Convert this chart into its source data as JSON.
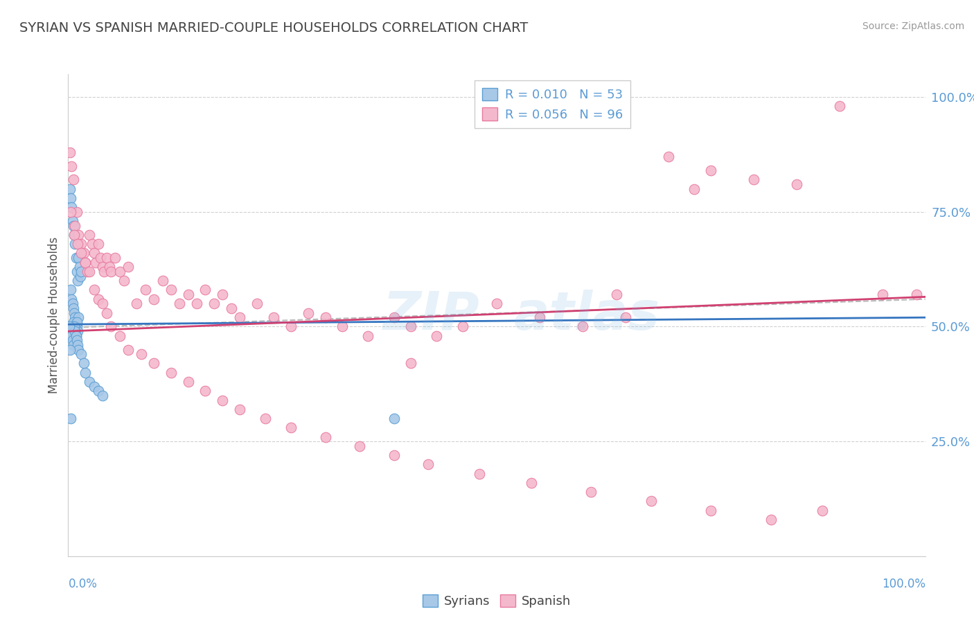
{
  "title": "SYRIAN VS SPANISH MARRIED-COUPLE HOUSEHOLDS CORRELATION CHART",
  "source": "Source: ZipAtlas.com",
  "ylabel": "Married-couple Households",
  "ytick_labels": [
    "25.0%",
    "50.0%",
    "75.0%",
    "100.0%"
  ],
  "ytick_values": [
    0.25,
    0.5,
    0.75,
    1.0
  ],
  "xlim": [
    0.0,
    1.0
  ],
  "ylim": [
    0.0,
    1.05
  ],
  "syrian_R": 0.01,
  "syrian_N": 53,
  "spanish_R": 0.056,
  "spanish_N": 96,
  "syrian_color": "#a8c8e8",
  "spanish_color": "#f4b8cc",
  "syrian_edge": "#5a9fd4",
  "spanish_edge": "#e87aa0",
  "trend_syrian_color": "#3575c0",
  "trend_spanish_color": "#d04070",
  "trend_dashed_color": "#b8b8b8",
  "background_color": "#ffffff",
  "grid_color": "#d0d0d0",
  "title_color": "#444444",
  "axis_label_color": "#5b9bd5",
  "legend_R_color": "#5b9bd5",
  "watermark_line1": "ZIP",
  "watermark_line2": "atlas",
  "syrian_x": [
    0.002,
    0.003,
    0.004,
    0.005,
    0.006,
    0.007,
    0.008,
    0.009,
    0.01,
    0.011,
    0.012,
    0.013,
    0.014,
    0.015,
    0.003,
    0.004,
    0.005,
    0.006,
    0.007,
    0.008,
    0.009,
    0.01,
    0.011,
    0.012,
    0.006,
    0.007,
    0.008,
    0.009,
    0.01,
    0.005,
    0.006,
    0.007,
    0.008,
    0.004,
    0.005,
    0.006,
    0.007,
    0.008,
    0.009,
    0.01,
    0.011,
    0.012,
    0.015,
    0.018,
    0.02,
    0.025,
    0.03,
    0.035,
    0.04,
    0.001,
    0.002,
    0.003,
    0.38
  ],
  "syrian_y": [
    0.8,
    0.78,
    0.76,
    0.73,
    0.72,
    0.7,
    0.68,
    0.65,
    0.62,
    0.6,
    0.65,
    0.63,
    0.61,
    0.62,
    0.58,
    0.56,
    0.55,
    0.54,
    0.53,
    0.52,
    0.51,
    0.5,
    0.49,
    0.52,
    0.51,
    0.5,
    0.49,
    0.48,
    0.51,
    0.5,
    0.49,
    0.48,
    0.47,
    0.48,
    0.47,
    0.46,
    0.5,
    0.49,
    0.48,
    0.47,
    0.46,
    0.45,
    0.44,
    0.42,
    0.4,
    0.38,
    0.37,
    0.36,
    0.35,
    0.5,
    0.45,
    0.3,
    0.3
  ],
  "spanish_x": [
    0.002,
    0.004,
    0.006,
    0.008,
    0.01,
    0.012,
    0.015,
    0.018,
    0.02,
    0.022,
    0.025,
    0.028,
    0.03,
    0.032,
    0.035,
    0.038,
    0.04,
    0.042,
    0.045,
    0.048,
    0.05,
    0.055,
    0.06,
    0.065,
    0.07,
    0.08,
    0.09,
    0.1,
    0.11,
    0.12,
    0.13,
    0.14,
    0.15,
    0.16,
    0.17,
    0.18,
    0.19,
    0.2,
    0.22,
    0.24,
    0.26,
    0.28,
    0.3,
    0.32,
    0.35,
    0.38,
    0.4,
    0.43,
    0.46,
    0.5,
    0.55,
    0.6,
    0.65,
    0.7,
    0.75,
    0.8,
    0.85,
    0.9,
    0.95,
    0.99,
    0.003,
    0.007,
    0.011,
    0.015,
    0.02,
    0.025,
    0.03,
    0.035,
    0.04,
    0.045,
    0.05,
    0.06,
    0.07,
    0.085,
    0.1,
    0.12,
    0.14,
    0.16,
    0.18,
    0.2,
    0.23,
    0.26,
    0.3,
    0.34,
    0.38,
    0.42,
    0.48,
    0.54,
    0.61,
    0.68,
    0.75,
    0.82,
    0.88,
    0.73,
    0.64,
    0.4
  ],
  "spanish_y": [
    0.88,
    0.85,
    0.82,
    0.72,
    0.75,
    0.7,
    0.68,
    0.66,
    0.64,
    0.62,
    0.7,
    0.68,
    0.66,
    0.64,
    0.68,
    0.65,
    0.63,
    0.62,
    0.65,
    0.63,
    0.62,
    0.65,
    0.62,
    0.6,
    0.63,
    0.55,
    0.58,
    0.56,
    0.6,
    0.58,
    0.55,
    0.57,
    0.55,
    0.58,
    0.55,
    0.57,
    0.54,
    0.52,
    0.55,
    0.52,
    0.5,
    0.53,
    0.52,
    0.5,
    0.48,
    0.52,
    0.5,
    0.48,
    0.5,
    0.55,
    0.52,
    0.5,
    0.52,
    0.87,
    0.84,
    0.82,
    0.81,
    0.98,
    0.57,
    0.57,
    0.75,
    0.7,
    0.68,
    0.66,
    0.64,
    0.62,
    0.58,
    0.56,
    0.55,
    0.53,
    0.5,
    0.48,
    0.45,
    0.44,
    0.42,
    0.4,
    0.38,
    0.36,
    0.34,
    0.32,
    0.3,
    0.28,
    0.26,
    0.24,
    0.22,
    0.2,
    0.18,
    0.16,
    0.14,
    0.12,
    0.1,
    0.08,
    0.1,
    0.8,
    0.57,
    0.42
  ],
  "trend_sy_x0": 0.0,
  "trend_sy_x1": 1.0,
  "trend_sy_y0": 0.505,
  "trend_sy_y1": 0.52,
  "trend_sp_x0": 0.0,
  "trend_sp_x1": 1.0,
  "trend_sp_y0": 0.49,
  "trend_sp_y1": 0.565,
  "trend_dash_x0": 0.0,
  "trend_dash_x1": 1.0,
  "trend_dash_y0": 0.498,
  "trend_dash_y1": 0.56
}
